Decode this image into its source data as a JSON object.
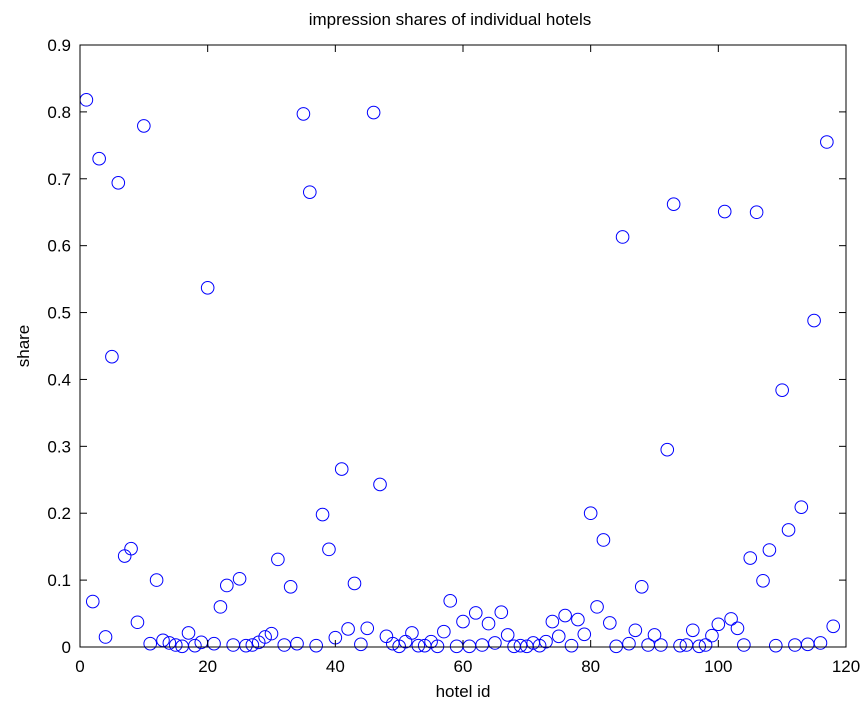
{
  "chart_data": {
    "type": "scatter",
    "title": "impression shares of individual hotels",
    "xlabel": "hotel id",
    "ylabel": "share",
    "xlim": [
      0,
      120
    ],
    "ylim": [
      0,
      0.9
    ],
    "xticks": [
      0,
      20,
      40,
      60,
      80,
      100,
      120
    ],
    "yticks": [
      0,
      0.1,
      0.2,
      0.3,
      0.4,
      0.5,
      0.6,
      0.7,
      0.8,
      0.9
    ],
    "xtick_labels": [
      "0",
      "20",
      "40",
      "60",
      "80",
      "100",
      "120"
    ],
    "ytick_labels": [
      "0",
      "0.1",
      "0.2",
      "0.3",
      "0.4",
      "0.5",
      "0.6",
      "0.7",
      "0.8",
      "0.9"
    ],
    "grid": false,
    "marker": "circle-open",
    "color": "#0000ff",
    "series": [
      {
        "x": [
          1,
          2,
          3,
          4,
          5,
          6,
          7,
          8,
          9,
          10,
          11,
          12,
          13,
          14,
          15,
          16,
          17,
          18,
          19,
          20,
          21,
          22,
          23,
          24,
          25,
          26,
          27,
          28,
          29,
          30,
          31,
          32,
          33,
          34,
          35,
          36,
          37,
          38,
          39,
          40,
          41,
          42,
          43,
          44,
          45,
          46,
          47,
          48,
          49,
          50,
          51,
          52,
          53,
          54,
          55,
          56,
          57,
          58,
          59,
          60,
          61,
          62,
          63,
          64,
          65,
          66,
          67,
          68,
          69,
          70,
          71,
          72,
          73,
          74,
          75,
          76,
          77,
          78,
          79,
          80,
          81,
          82,
          83,
          84,
          85,
          86,
          87,
          88,
          89,
          90,
          91,
          92,
          93,
          94,
          95,
          96,
          97,
          98,
          99,
          100,
          101,
          102,
          103,
          104,
          105,
          106,
          107,
          108,
          109,
          110,
          111,
          112,
          113,
          114,
          115,
          116,
          117,
          118
        ],
        "y": [
          0.818,
          0.068,
          0.73,
          0.015,
          0.434,
          0.694,
          0.136,
          0.147,
          0.037,
          0.779,
          0.005,
          0.1,
          0.01,
          0.006,
          0.003,
          0.001,
          0.021,
          0.002,
          0.007,
          0.537,
          0.005,
          0.06,
          0.092,
          0.003,
          0.102,
          0.002,
          0.003,
          0.007,
          0.015,
          0.02,
          0.131,
          0.003,
          0.09,
          0.005,
          0.797,
          0.68,
          0.002,
          0.198,
          0.146,
          0.014,
          0.266,
          0.027,
          0.095,
          0.004,
          0.028,
          0.799,
          0.243,
          0.016,
          0.005,
          0.001,
          0.008,
          0.021,
          0.002,
          0.002,
          0.008,
          0.001,
          0.023,
          0.069,
          0.001,
          0.038,
          0.001,
          0.051,
          0.003,
          0.035,
          0.006,
          0.052,
          0.018,
          0.001,
          0.002,
          0.001,
          0.006,
          0.002,
          0.008,
          0.038,
          0.016,
          0.047,
          0.002,
          0.041,
          0.019,
          0.2,
          0.06,
          0.16,
          0.036,
          0.001,
          0.613,
          0.005,
          0.025,
          0.09,
          0.003,
          0.018,
          0.003,
          0.295,
          0.662,
          0.002,
          0.003,
          0.025,
          0.001,
          0.003,
          0.017,
          0.034,
          0.651,
          0.042,
          0.028,
          0.003,
          0.133,
          0.65,
          0.099,
          0.145,
          0.002,
          0.384,
          0.175,
          0.003,
          0.209,
          0.004,
          0.488,
          0.006,
          0.755,
          0.031
        ]
      }
    ]
  }
}
